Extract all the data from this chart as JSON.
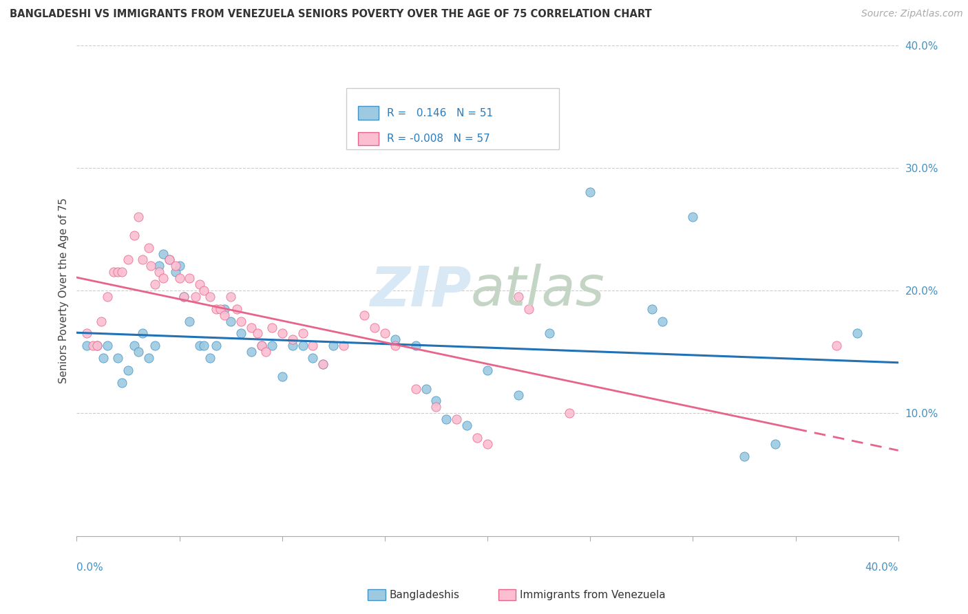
{
  "title": "BANGLADESHI VS IMMIGRANTS FROM VENEZUELA SENIORS POVERTY OVER THE AGE OF 75 CORRELATION CHART",
  "source": "Source: ZipAtlas.com",
  "ylabel": "Seniors Poverty Over the Age of 75",
  "xlim": [
    0.0,
    0.4
  ],
  "ylim": [
    0.0,
    0.4
  ],
  "yticks": [
    0.0,
    0.1,
    0.2,
    0.3,
    0.4
  ],
  "ytick_labels": [
    "",
    "10.0%",
    "20.0%",
    "30.0%",
    "40.0%"
  ],
  "blue_color": "#9ecae1",
  "pink_color": "#fcbfd2",
  "blue_edge_color": "#4292c6",
  "pink_edge_color": "#e8638a",
  "blue_line_color": "#2171b5",
  "pink_line_color": "#e8638a",
  "blue_scatter": [
    [
      0.005,
      0.155
    ],
    [
      0.01,
      0.155
    ],
    [
      0.013,
      0.145
    ],
    [
      0.015,
      0.155
    ],
    [
      0.02,
      0.145
    ],
    [
      0.022,
      0.125
    ],
    [
      0.025,
      0.135
    ],
    [
      0.028,
      0.155
    ],
    [
      0.03,
      0.15
    ],
    [
      0.032,
      0.165
    ],
    [
      0.035,
      0.145
    ],
    [
      0.038,
      0.155
    ],
    [
      0.04,
      0.22
    ],
    [
      0.042,
      0.23
    ],
    [
      0.045,
      0.225
    ],
    [
      0.048,
      0.215
    ],
    [
      0.05,
      0.22
    ],
    [
      0.052,
      0.195
    ],
    [
      0.055,
      0.175
    ],
    [
      0.06,
      0.155
    ],
    [
      0.062,
      0.155
    ],
    [
      0.065,
      0.145
    ],
    [
      0.068,
      0.155
    ],
    [
      0.072,
      0.185
    ],
    [
      0.075,
      0.175
    ],
    [
      0.08,
      0.165
    ],
    [
      0.085,
      0.15
    ],
    [
      0.09,
      0.155
    ],
    [
      0.095,
      0.155
    ],
    [
      0.1,
      0.13
    ],
    [
      0.105,
      0.155
    ],
    [
      0.11,
      0.155
    ],
    [
      0.115,
      0.145
    ],
    [
      0.12,
      0.14
    ],
    [
      0.125,
      0.155
    ],
    [
      0.155,
      0.16
    ],
    [
      0.165,
      0.155
    ],
    [
      0.17,
      0.12
    ],
    [
      0.175,
      0.11
    ],
    [
      0.18,
      0.095
    ],
    [
      0.19,
      0.09
    ],
    [
      0.2,
      0.135
    ],
    [
      0.215,
      0.115
    ],
    [
      0.23,
      0.165
    ],
    [
      0.25,
      0.28
    ],
    [
      0.28,
      0.185
    ],
    [
      0.285,
      0.175
    ],
    [
      0.3,
      0.26
    ],
    [
      0.325,
      0.065
    ],
    [
      0.34,
      0.075
    ],
    [
      0.38,
      0.165
    ]
  ],
  "pink_scatter": [
    [
      0.005,
      0.165
    ],
    [
      0.008,
      0.155
    ],
    [
      0.01,
      0.155
    ],
    [
      0.012,
      0.175
    ],
    [
      0.015,
      0.195
    ],
    [
      0.018,
      0.215
    ],
    [
      0.02,
      0.215
    ],
    [
      0.022,
      0.215
    ],
    [
      0.025,
      0.225
    ],
    [
      0.028,
      0.245
    ],
    [
      0.03,
      0.26
    ],
    [
      0.032,
      0.225
    ],
    [
      0.035,
      0.235
    ],
    [
      0.036,
      0.22
    ],
    [
      0.038,
      0.205
    ],
    [
      0.04,
      0.215
    ],
    [
      0.042,
      0.21
    ],
    [
      0.045,
      0.225
    ],
    [
      0.048,
      0.22
    ],
    [
      0.05,
      0.21
    ],
    [
      0.052,
      0.195
    ],
    [
      0.055,
      0.21
    ],
    [
      0.058,
      0.195
    ],
    [
      0.06,
      0.205
    ],
    [
      0.062,
      0.2
    ],
    [
      0.065,
      0.195
    ],
    [
      0.068,
      0.185
    ],
    [
      0.07,
      0.185
    ],
    [
      0.072,
      0.18
    ],
    [
      0.075,
      0.195
    ],
    [
      0.078,
      0.185
    ],
    [
      0.08,
      0.175
    ],
    [
      0.085,
      0.17
    ],
    [
      0.088,
      0.165
    ],
    [
      0.09,
      0.155
    ],
    [
      0.092,
      0.15
    ],
    [
      0.095,
      0.17
    ],
    [
      0.1,
      0.165
    ],
    [
      0.105,
      0.16
    ],
    [
      0.11,
      0.165
    ],
    [
      0.115,
      0.155
    ],
    [
      0.12,
      0.14
    ],
    [
      0.13,
      0.155
    ],
    [
      0.14,
      0.18
    ],
    [
      0.145,
      0.17
    ],
    [
      0.15,
      0.165
    ],
    [
      0.155,
      0.155
    ],
    [
      0.165,
      0.12
    ],
    [
      0.175,
      0.105
    ],
    [
      0.185,
      0.095
    ],
    [
      0.195,
      0.08
    ],
    [
      0.2,
      0.075
    ],
    [
      0.215,
      0.195
    ],
    [
      0.22,
      0.185
    ],
    [
      0.24,
      0.1
    ],
    [
      0.37,
      0.155
    ]
  ]
}
